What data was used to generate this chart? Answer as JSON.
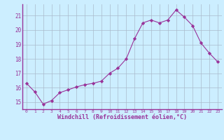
{
  "x": [
    0,
    1,
    2,
    3,
    4,
    5,
    6,
    7,
    8,
    9,
    10,
    11,
    12,
    13,
    14,
    15,
    16,
    17,
    18,
    19,
    20,
    21,
    22,
    23
  ],
  "y": [
    16.3,
    15.7,
    14.85,
    15.1,
    15.65,
    15.85,
    16.05,
    16.2,
    16.3,
    16.45,
    17.0,
    17.35,
    18.0,
    19.4,
    20.5,
    20.7,
    20.5,
    20.7,
    21.4,
    20.9,
    20.3,
    19.1,
    18.4,
    17.8
  ],
  "line_color": "#993399",
  "marker": "D",
  "marker_size": 2.2,
  "bg_color": "#cceeff",
  "grid_color": "#aabbcc",
  "xlabel": "Windchill (Refroidissement éolien,°C)",
  "ylim": [
    14.5,
    21.8
  ],
  "xlim": [
    -0.5,
    23.5
  ],
  "yticks": [
    15,
    16,
    17,
    18,
    19,
    20,
    21
  ],
  "xticks": [
    0,
    1,
    2,
    3,
    4,
    5,
    6,
    7,
    8,
    9,
    10,
    11,
    12,
    13,
    14,
    15,
    16,
    17,
    18,
    19,
    20,
    21,
    22,
    23
  ],
  "tick_color": "#993399",
  "label_color": "#993399",
  "spine_color": "#993399",
  "font": "monospace"
}
